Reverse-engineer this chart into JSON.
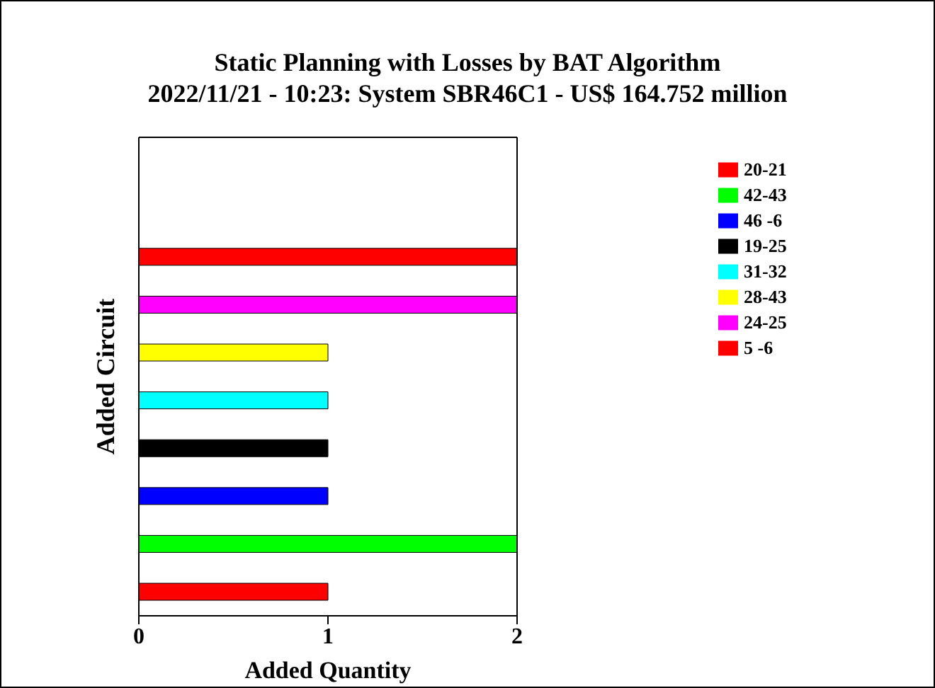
{
  "chart_data": {
    "type": "bar",
    "orientation": "horizontal",
    "stacked": true,
    "title": "Static Planning with Losses by BAT Algorithm",
    "subtitle": "2022/11/21 - 10:23: System SBR46C1 - US$ 164.752 million",
    "xlabel": "Added Quantity",
    "ylabel": "Added Circuit",
    "categories": [
      null,
      null,
      null,
      null,
      null,
      null,
      null,
      null,
      null,
      null
    ],
    "series": [
      {
        "name": "20-21",
        "color": "#ff0000",
        "values": [
          null,
          null,
          null,
          null,
          null,
          null,
          null,
          null,
          null,
          1
        ]
      },
      {
        "name": "42-43",
        "color": "#00ff00",
        "values": [
          null,
          null,
          null,
          null,
          null,
          null,
          null,
          null,
          2,
          null
        ]
      },
      {
        "name": "46 -6",
        "color": "#0000ff",
        "values": [
          null,
          null,
          null,
          null,
          null,
          null,
          null,
          1,
          null,
          null
        ]
      },
      {
        "name": "19-25",
        "color": "#000000",
        "values": [
          null,
          null,
          null,
          null,
          null,
          null,
          1,
          null,
          null,
          null
        ]
      },
      {
        "name": "31-32",
        "color": "#00ffff",
        "values": [
          null,
          null,
          null,
          null,
          null,
          1,
          null,
          null,
          null,
          null
        ]
      },
      {
        "name": "28-43",
        "color": "#ffff00",
        "values": [
          null,
          null,
          null,
          null,
          1,
          null,
          null,
          null,
          null,
          null
        ]
      },
      {
        "name": "24-25",
        "color": "#ff00ff",
        "values": [
          null,
          null,
          null,
          2,
          null,
          null,
          null,
          null,
          null,
          null
        ]
      },
      {
        "name": "5 -6",
        "color": "#ff0000",
        "values": [
          null,
          null,
          2,
          null,
          null,
          null,
          null,
          null,
          null,
          null
        ]
      }
    ],
    "xlim": [
      0,
      2
    ],
    "xticks": [
      0,
      1,
      2
    ],
    "legend": "right"
  }
}
